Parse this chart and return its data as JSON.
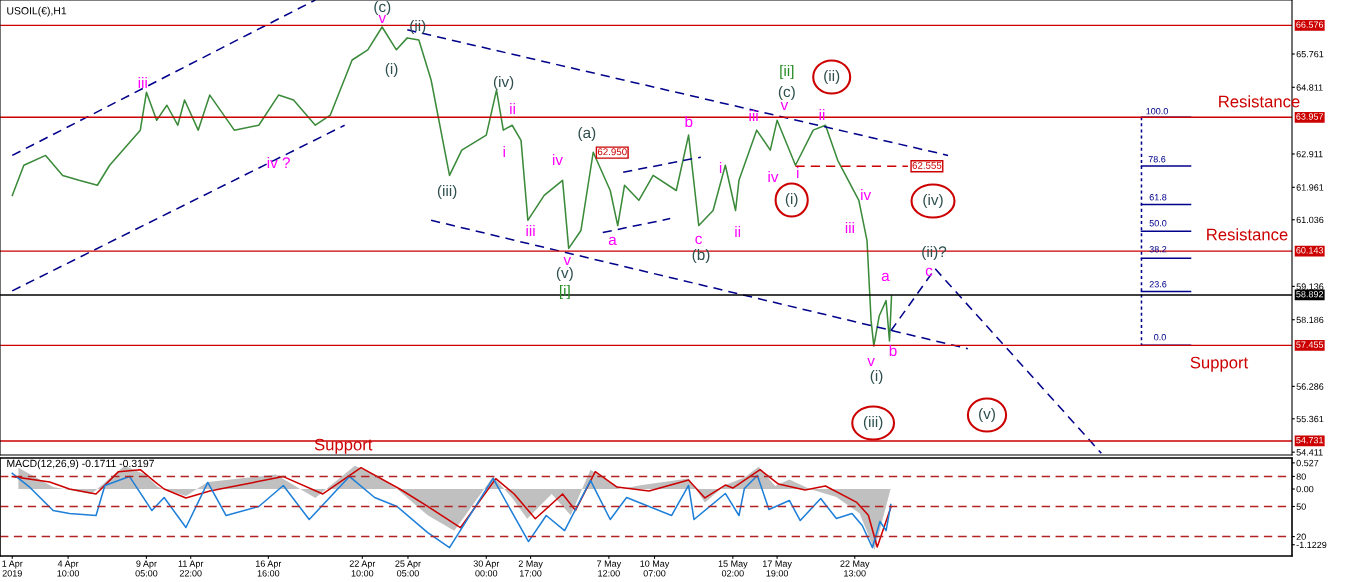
{
  "chart_data": [
    {
      "type": "line",
      "title": "USOIL(€),H1",
      "grid": false,
      "tick_labels": "y",
      "xlim": [
        "2019-03-31T06:00",
        "2019-06-18T07:00"
      ],
      "ylim": [
        54.33,
        67.3
      ],
      "yticks": [
        54.411,
        55.361,
        56.286,
        58.186,
        59.136,
        61.036,
        61.961,
        62.911,
        64.811,
        65.761
      ],
      "series": [
        {
          "type": "line",
          "color": "#3a8a3a",
          "line_style": "solid",
          "x": [
            "2019-04-01T00:00",
            "2019-04-01T17:00",
            "2019-04-03T01:00",
            "2019-04-04T02:00",
            "2019-04-05T02:00",
            "2019-04-06T05:00",
            "2019-04-06T23:00",
            "2019-04-08T20:00",
            "2019-04-09T05:00",
            "2019-04-09T20:00",
            "2019-04-10T11:00",
            "2019-04-11T03:00",
            "2019-04-11T13:00",
            "2019-04-12T09:00",
            "2019-04-13T02:00",
            "2019-04-14T14:00",
            "2019-04-16T02:00",
            "2019-04-17T07:00",
            "2019-04-18T05:00",
            "2019-04-19T13:00",
            "2019-04-20T11:00",
            "2019-04-21T19:00",
            "2019-04-22T18:00",
            "2019-04-23T15:00",
            "2019-04-24T12:00",
            "2019-04-25T04:00",
            "2019-04-25T21:00",
            "2019-04-26T15:00",
            "2019-04-27T18:00",
            "2019-04-28T12:00",
            "2019-04-30T00:00",
            "2019-04-30T15:00",
            "2019-05-01T01:00",
            "2019-05-01T14:00",
            "2019-05-02T03:00",
            "2019-05-02T13:00",
            "2019-05-03T13:00",
            "2019-05-04T16:00",
            "2019-05-05T01:00",
            "2019-05-05T19:00",
            "2019-05-06T13:00",
            "2019-05-07T14:00",
            "2019-05-08T01:00",
            "2019-05-08T11:00",
            "2019-05-09T08:00",
            "2019-05-10T05:00",
            "2019-05-11T15:00",
            "2019-05-12T09:00",
            "2019-05-13T00:00",
            "2019-05-13T21:00",
            "2019-05-14T15:00",
            "2019-05-15T06:00",
            "2019-05-15T11:00",
            "2019-05-16T13:00",
            "2019-05-17T09:00",
            "2019-05-17T19:00",
            "2019-05-18T22:00",
            "2019-05-20T00:00",
            "2019-05-20T18:00",
            "2019-05-21T12:00",
            "2019-05-22T19:00",
            "2019-05-23T07:00",
            "2019-05-23T13:00",
            "2019-05-23T17:00",
            "2019-05-24T01:00",
            "2019-05-24T11:00",
            "2019-05-24T16:00",
            "2019-05-24T19:00"
          ],
          "values": [
            61.73,
            62.59,
            62.87,
            62.3,
            62.16,
            62.02,
            62.59,
            63.59,
            64.67,
            63.87,
            64.3,
            63.73,
            64.45,
            63.59,
            64.59,
            63.59,
            63.73,
            64.59,
            64.45,
            63.73,
            64.02,
            65.59,
            65.88,
            66.53,
            65.88,
            66.22,
            66.16,
            65.02,
            62.3,
            63.02,
            63.45,
            64.73,
            63.59,
            63.73,
            63.3,
            61.02,
            61.73,
            62.16,
            60.22,
            60.73,
            62.96,
            61.87,
            60.87,
            62.02,
            61.59,
            62.3,
            61.87,
            63.45,
            60.87,
            61.3,
            62.59,
            61.3,
            62.16,
            63.59,
            63.02,
            63.87,
            62.59,
            63.59,
            63.73,
            62.73,
            61.59,
            60.44,
            58.16,
            57.44,
            58.3,
            58.73,
            57.58,
            58.87
          ]
        },
        {
          "type": "line",
          "color": "#00008b",
          "line_style": "dashed",
          "x": [
            "2019-04-01T00:00",
            "2019-04-19T13:00"
          ],
          "values": [
            62.87,
            67.3
          ]
        },
        {
          "type": "line",
          "color": "#00008b",
          "line_style": "dashed",
          "x": [
            "2019-04-01T00:00",
            "2019-04-21T08:00"
          ],
          "values": [
            59.01,
            63.73
          ]
        },
        {
          "type": "line",
          "color": "#00008b",
          "line_style": "dashed",
          "x": [
            "2019-04-25T04:00",
            "2019-05-28T06:00"
          ],
          "values": [
            66.45,
            62.87
          ]
        },
        {
          "type": "line",
          "color": "#00008b",
          "line_style": "dashed",
          "x": [
            "2019-04-26T15:00",
            "2019-05-29T11:00"
          ],
          "values": [
            61.02,
            57.36
          ]
        },
        {
          "type": "line",
          "color": "#00008b",
          "line_style": "dashed",
          "x": [
            "2019-05-07T03:00",
            "2019-05-11T06:00"
          ],
          "values": [
            60.67,
            61.07
          ]
        },
        {
          "type": "line",
          "color": "#00008b",
          "line_style": "dashed",
          "x": [
            "2019-05-08T09:00",
            "2019-05-13T03:00"
          ],
          "values": [
            62.39,
            62.82
          ]
        },
        {
          "type": "line",
          "color": "#00008b",
          "line_style": "dashed",
          "x": [
            "2019-05-24T18:00",
            "2019-05-27T11:00",
            "2019-06-06T15:00"
          ],
          "values": [
            57.87,
            59.64,
            54.38
          ]
        },
        {
          "type": "line",
          "color": "#00008b",
          "line_style": "dotted",
          "x": [
            "2019-06-09T02:00",
            "2019-06-09T02:00"
          ],
          "values": [
            63.96,
            57.46
          ]
        },
        {
          "type": "line",
          "color": "#00008b",
          "line_style": "solid",
          "x": [
            "2019-06-09T02:00",
            "2019-06-12T02:00"
          ],
          "values": [
            63.96,
            63.96
          ]
        },
        {
          "type": "line",
          "color": "#00008b",
          "line_style": "solid",
          "x": [
            "2019-06-09T02:00",
            "2019-06-12T02:00"
          ],
          "values": [
            62.57,
            62.57
          ]
        },
        {
          "type": "line",
          "color": "#00008b",
          "line_style": "solid",
          "x": [
            "2019-06-09T02:00",
            "2019-06-12T02:00"
          ],
          "values": [
            61.47,
            61.47
          ]
        },
        {
          "type": "line",
          "color": "#00008b",
          "line_style": "solid",
          "x": [
            "2019-06-09T02:00",
            "2019-06-12T02:00"
          ],
          "values": [
            60.71,
            60.71
          ]
        },
        {
          "type": "line",
          "color": "#00008b",
          "line_style": "solid",
          "x": [
            "2019-06-09T02:00",
            "2019-06-12T02:00"
          ],
          "values": [
            59.94,
            59.94
          ]
        },
        {
          "type": "line",
          "color": "#00008b",
          "line_style": "solid",
          "x": [
            "2019-06-09T02:00",
            "2019-06-12T02:00"
          ],
          "values": [
            58.99,
            58.99
          ]
        },
        {
          "type": "line",
          "color": "#00008b",
          "line_style": "solid",
          "x": [
            "2019-06-09T02:00",
            "2019-06-12T02:00"
          ],
          "values": [
            57.46,
            57.46
          ]
        },
        {
          "type": "line",
          "color": "#cc0000",
          "line_style": "dashed",
          "x": [
            "2019-05-18T22:00",
            "2019-05-25T19:00"
          ],
          "values": [
            62.56,
            62.56
          ]
        }
      ],
      "ref_lines": [
        {
          "axis": "y",
          "value": 66.576,
          "label": "66.576",
          "color": "#cc0000"
        },
        {
          "axis": "y",
          "value": 63.957,
          "label": "63.957",
          "color": "#cc0000"
        },
        {
          "axis": "y",
          "value": 60.143,
          "label": "60.143",
          "color": "#cc0000"
        },
        {
          "axis": "y",
          "value": 57.455,
          "label": "57.455",
          "color": "#cc0000"
        },
        {
          "axis": "y",
          "value": 54.731,
          "label": "54.731",
          "color": "#cc0000"
        },
        {
          "axis": "y",
          "value": 58.892,
          "label": "58.892",
          "color": "#000000"
        }
      ],
      "annotations": [
        "(c)",
        "v",
        "(ii)",
        "(i)",
        "iii",
        "iv ?",
        "(iii)",
        "(iv)",
        "ii",
        "i",
        "(a)",
        {
          "text": "62.950",
          "x": "2019-05-06T13:00",
          "y": 62.95
        },
        "iv",
        "iii",
        "v",
        "(v)",
        "[i]",
        "a",
        "b",
        "c",
        "(b)",
        "i",
        "ii",
        "iii",
        "iv",
        "i",
        "v",
        "(c)",
        "[ii]",
        "(ii)",
        "ii",
        "(i)",
        {
          "text": "62.555",
          "x": "2019-05-25T19:00",
          "y": 62.56
        },
        "iv",
        "iii",
        "(iv)",
        "(ii)?",
        "c",
        "a",
        "b",
        "v",
        "(i)",
        "(iii)",
        "(v)",
        "Resistance",
        "Resistance",
        "Support",
        "Support",
        "100.0",
        "78.6",
        "61.8",
        "50.0",
        "38.2",
        "23.6",
        "0.0"
      ]
    },
    {
      "type": "line",
      "title": "MACD(12,26,9) -0.1711 -0.3197",
      "grid": false,
      "xlim": [
        "2019-03-31T06:00",
        "2019-06-18T07:00"
      ],
      "xticks": [
        {
          "value": "2019-04-01T00:00",
          "label": "1 Apr 2019"
        },
        {
          "value": "2019-04-04T10:00",
          "label": "4 Apr 10:00"
        },
        {
          "value": "2019-04-09T05:00",
          "label": "9 Apr 05:00"
        },
        {
          "value": "2019-04-11T22:00",
          "label": "11 Apr 22:00"
        },
        {
          "value": "2019-04-16T16:00",
          "label": "16 Apr 16:00"
        },
        {
          "value": "2019-04-22T10:00",
          "label": "22 Apr 10:00"
        },
        {
          "value": "2019-04-25T05:00",
          "label": "25 Apr 05:00"
        },
        {
          "value": "2019-04-30T00:00",
          "label": "30 Apr 00:00"
        },
        {
          "value": "2019-05-02T17:00",
          "label": "2 May 17:00"
        },
        {
          "value": "2019-05-07T12:00",
          "label": "7 May 12:00"
        },
        {
          "value": "2019-05-10T07:00",
          "label": "10 May 07:00"
        },
        {
          "value": "2019-05-15T02:00",
          "label": "15 May 02:00"
        },
        {
          "value": "2019-05-17T19:00",
          "label": "17 May 19:00"
        },
        {
          "value": "2019-05-22T13:00",
          "label": "22 May 13:00"
        }
      ],
      "ylim": [
        -1.35,
        0.625
      ],
      "yticks": [
        0.527,
        {
          "value": 0,
          "label": "0.00"
        },
        -1.1229
      ],
      "y2lim": [
        0.6,
        98.4
      ],
      "y2ticks": [
        20,
        50,
        80
      ],
      "series": [
        {
          "type": "area",
          "color": "#c0c0c0",
          "x": [
            "2019-04-01T09:00",
            "2019-04-03T12:00",
            "2019-04-05T20:00",
            "2019-04-07T21:00",
            "2019-04-09T03:00",
            "2019-04-09T22:00",
            "2019-04-11T15:00",
            "2019-04-12T23:00",
            "2019-04-17T03:00",
            "2019-04-19T13:00",
            "2019-04-21T23:00",
            "2019-04-23T04:00",
            "2019-04-24T13:00",
            "2019-04-26T10:00",
            "2019-04-28T01:00",
            "2019-04-30T10:00",
            "2019-05-01T14:00",
            "2019-05-02T12:00",
            "2019-05-04T00:00",
            "2019-05-05T04:00",
            "2019-05-06T09:00",
            "2019-05-08T05:00",
            "2019-05-09T13:00",
            "2019-05-12T09:00",
            "2019-05-13T09:00",
            "2019-05-14T15:00",
            "2019-05-15T19:00",
            "2019-05-16T16:00",
            "2019-05-17T16:00",
            "2019-05-18T13:00",
            "2019-05-19T19:00",
            "2019-05-21T10:00",
            "2019-05-22T20:00",
            "2019-05-23T18:00",
            "2019-05-24T18:00"
          ],
          "values": [
            0.43,
            0.04,
            -0.1,
            0.47,
            0.29,
            0.04,
            -0.14,
            0.14,
            0.29,
            -0.18,
            0.47,
            0.29,
            0,
            -0.53,
            -0.84,
            0.25,
            -0.18,
            -0.6,
            -0.1,
            -0.53,
            0.39,
            0,
            0.08,
            0.21,
            -0.27,
            0.08,
            0.23,
            0.45,
            0.06,
            0.19,
            0,
            -0.16,
            -0.49,
            -1.23,
            0.02
          ]
        },
        {
          "type": "line",
          "color": "#cc0000",
          "line_style": "solid",
          "x": [
            "2019-04-01T00:00",
            "2019-04-03T07:00",
            "2019-04-04T12:00",
            "2019-04-06T03:00",
            "2019-04-07T12:00",
            "2019-04-08T20:00",
            "2019-04-09T18:00",
            "2019-04-10T07:00",
            "2019-04-11T15:00",
            "2019-04-13T02:00",
            "2019-04-17T14:00",
            "2019-04-20T00:00",
            "2019-04-22T08:00",
            "2019-04-24T17:00",
            "2019-04-26T10:00",
            "2019-04-28T10:00",
            "2019-04-30T14:00",
            "2019-05-01T17:00",
            "2019-05-03T00:00",
            "2019-05-04T16:00",
            "2019-05-05T11:00",
            "2019-05-06T16:00",
            "2019-05-08T00:00",
            "2019-05-09T23:00",
            "2019-05-12T09:00",
            "2019-05-13T09:00",
            "2019-05-14T15:00",
            "2019-05-15T02:00",
            "2019-05-16T18:00",
            "2019-05-17T21:00",
            "2019-05-19T12:00",
            "2019-05-20T18:00",
            "2019-05-22T16:00",
            "2019-05-23T09:00",
            "2019-05-23T22:00",
            "2019-05-24T18:00"
          ],
          "values": [
            0.25,
            0.14,
            0,
            -0.1,
            0.35,
            0.39,
            0.14,
            0,
            -0.18,
            -0.04,
            0.25,
            -0.1,
            0.43,
            0,
            -0.35,
            -0.78,
            0.21,
            -0.1,
            -0.6,
            -0.1,
            -0.43,
            0.35,
            0.04,
            -0.04,
            0.18,
            -0.18,
            0.08,
            0.02,
            0.39,
            0.1,
            -0.02,
            0.06,
            -0.27,
            -0.53,
            -1.17,
            -0.37
          ]
        },
        {
          "type": "line",
          "color": "#1e7fd8",
          "line_style": "solid",
          "axis": "y2",
          "x": [
            "2019-04-01T00:00",
            "2019-04-02T02:00",
            "2019-04-03T12:00",
            "2019-04-04T12:00",
            "2019-04-06T03:00",
            "2019-04-06T16:00",
            "2019-04-08T04:00",
            "2019-04-09T13:00",
            "2019-04-10T07:00",
            "2019-04-11T15:00",
            "2019-04-12T23:00",
            "2019-04-14T02:00",
            "2019-04-16T02:00",
            "2019-04-17T14:00",
            "2019-04-19T04:00",
            "2019-04-21T15:00",
            "2019-04-23T04:00",
            "2019-04-24T13:00",
            "2019-04-26T10:00",
            "2019-04-27T18:00",
            "2019-04-30T10:00",
            "2019-05-01T09:00",
            "2019-05-02T14:00",
            "2019-05-03T16:00",
            "2019-05-04T19:00",
            "2019-05-06T09:00",
            "2019-05-07T14:00",
            "2019-05-08T14:00",
            "2019-05-09T23:00",
            "2019-05-11T08:00",
            "2019-05-12T09:00",
            "2019-05-12T17:00",
            "2019-05-14T15:00",
            "2019-05-15T11:00",
            "2019-05-15T19:00",
            "2019-05-16T14:00",
            "2019-05-17T07:00",
            "2019-05-18T13:00",
            "2019-05-19T05:00",
            "2019-05-20T11:00",
            "2019-05-21T10:00",
            "2019-05-22T09:00",
            "2019-05-23T00:00",
            "2019-05-23T15:00",
            "2019-05-24T02:00",
            "2019-05-24T11:00",
            "2019-05-24T18:00"
          ],
          "values": [
            83,
            69,
            46,
            43,
            41,
            71,
            80,
            46,
            59,
            29,
            74,
            41,
            50,
            71,
            37,
            80,
            59,
            50,
            24,
            9,
            78,
            50,
            15,
            41,
            26,
            76,
            37,
            59,
            50,
            41,
            71,
            37,
            63,
            41,
            68,
            81,
            47,
            56,
            36,
            58,
            38,
            43,
            31,
            9,
            35,
            26,
            52
          ]
        }
      ],
      "ref_lines": [
        {
          "axis": "y2",
          "value": 80,
          "color": "#b22222",
          "line_style": "dashed"
        },
        {
          "axis": "y2",
          "value": 50,
          "color": "#b22222",
          "line_style": "dashed"
        },
        {
          "axis": "y2",
          "value": 20,
          "color": "#b22222",
          "line_style": "dashed"
        }
      ]
    }
  ]
}
